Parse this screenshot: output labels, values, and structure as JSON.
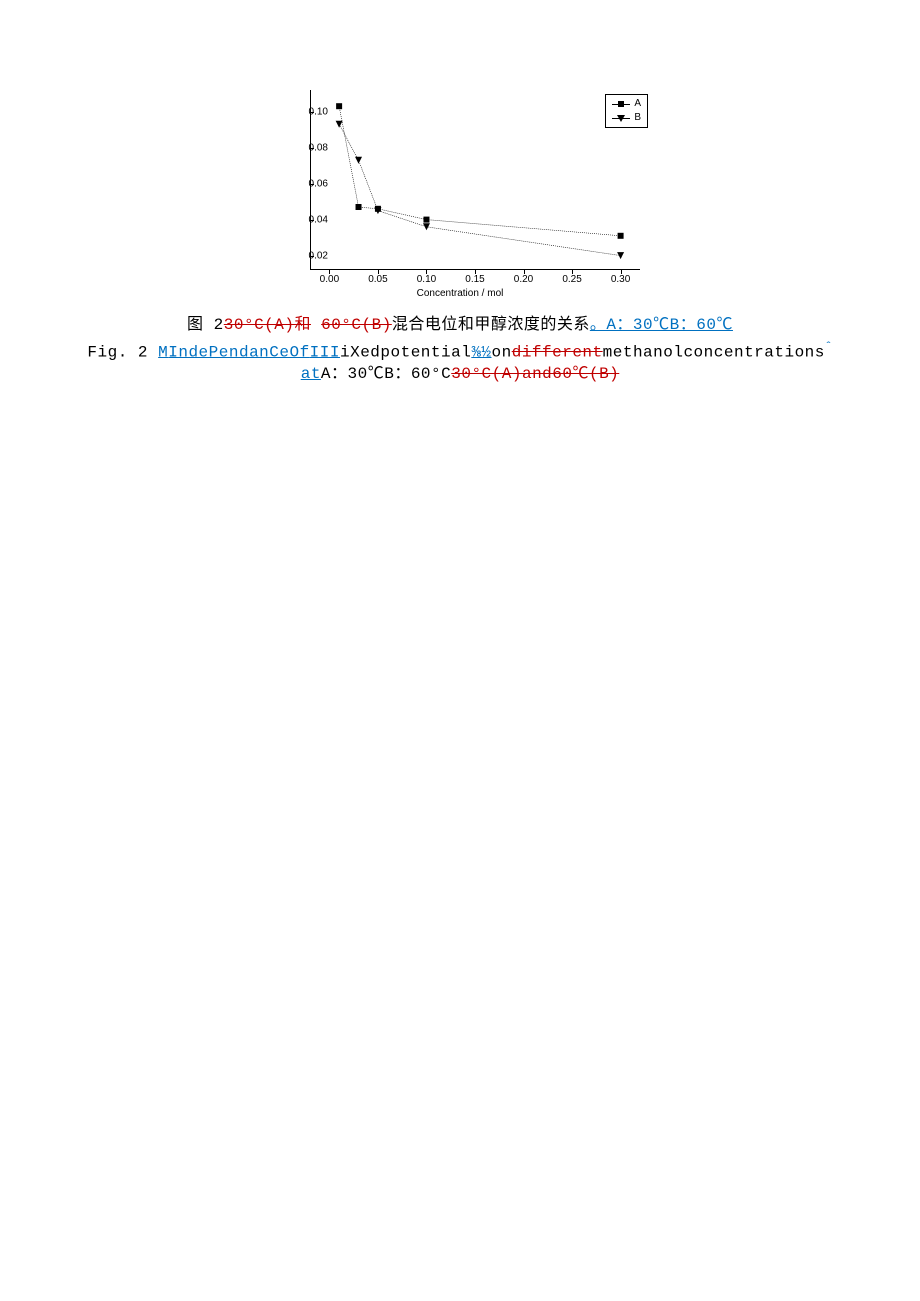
{
  "chart": {
    "type": "line-scatter",
    "xlabel": "Concentration / mol",
    "x_ticks": [
      "0.00",
      "0.05",
      "0.10",
      "0.15",
      "0.20",
      "0.25",
      "0.30"
    ],
    "x_tick_values": [
      0.0,
      0.05,
      0.1,
      0.15,
      0.2,
      0.25,
      0.3
    ],
    "xlim": [
      -0.02,
      0.32
    ],
    "y_ticks": [
      "0.02",
      "0.04",
      "0.06",
      "0.08",
      "0.10"
    ],
    "y_tick_values": [
      0.02,
      0.04,
      0.06,
      0.08,
      0.1
    ],
    "ylim": [
      0.012,
      0.112
    ],
    "legend": {
      "position": "top-right",
      "items": [
        {
          "label": "A",
          "marker": "square"
        },
        {
          "label": "B",
          "marker": "triangle-down"
        }
      ]
    },
    "series": [
      {
        "name": "A",
        "marker": "square",
        "marker_size": 6,
        "line_dash": "1 1",
        "color": "#000000",
        "points": [
          {
            "x": 0.01,
            "y": 0.103
          },
          {
            "x": 0.03,
            "y": 0.047
          },
          {
            "x": 0.05,
            "y": 0.046
          },
          {
            "x": 0.1,
            "y": 0.04
          },
          {
            "x": 0.3,
            "y": 0.031
          }
        ]
      },
      {
        "name": "B",
        "marker": "triangle-down",
        "marker_size": 7,
        "line_dash": "1 1",
        "color": "#000000",
        "points": [
          {
            "x": 0.01,
            "y": 0.093
          },
          {
            "x": 0.03,
            "y": 0.073
          },
          {
            "x": 0.05,
            "y": 0.045
          },
          {
            "x": 0.1,
            "y": 0.036
          },
          {
            "x": 0.3,
            "y": 0.02
          }
        ]
      }
    ],
    "background_color": "#ffffff",
    "tick_fontsize": 10,
    "label_fontsize": 10
  },
  "caption_cn": {
    "prefix": "图 2",
    "strike1": "30°C(A)和",
    "strike2": "60°C(B)",
    "mid": "混合电位和甲醇浓度的关系",
    "ins": "。A：30℃B：60℃"
  },
  "caption_en_l1": {
    "prefix": "Fig. 2",
    "sp": " ",
    "u1": "M",
    "u2": "IndePendanCeOf",
    "u3": "III",
    "plain1": "iXedpotential",
    "u4": "⅜½",
    "plain2": "on",
    "strike": "different",
    "plain3": "methanolconcentrations",
    "caret": "ˆ"
  },
  "caption_en_l2": {
    "u1": "at",
    "plain1": "A：30℃B：60°C",
    "strike": "30°C(A)and60℃(B)"
  }
}
